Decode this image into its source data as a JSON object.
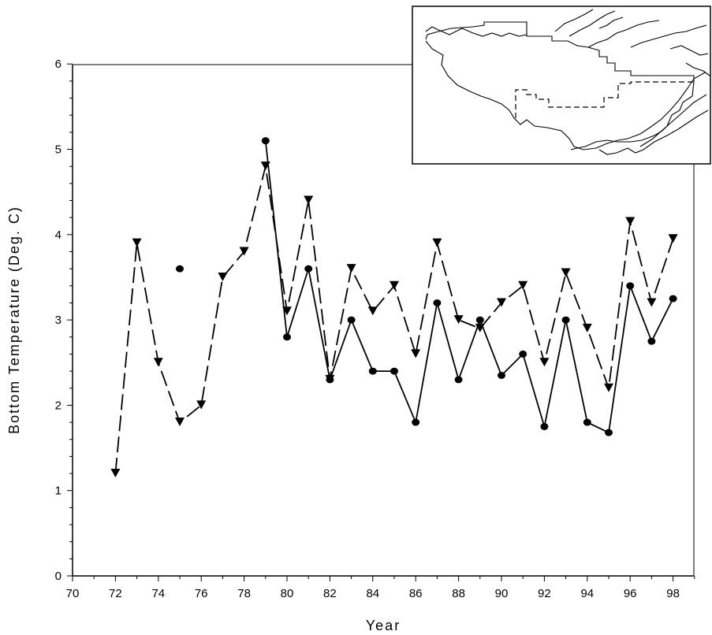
{
  "chart_data": {
    "type": "line",
    "title": "",
    "xlabel": "Year",
    "ylabel": "Bottom Temperature (Deg. C)",
    "xlim": [
      70,
      99
    ],
    "ylim": [
      0,
      6
    ],
    "x_ticks": [
      "70",
      "72",
      "74",
      "76",
      "78",
      "80",
      "82",
      "84",
      "86",
      "88",
      "90",
      "92",
      "94",
      "96",
      "98"
    ],
    "y_ticks": [
      "0",
      "1",
      "2",
      "3",
      "4",
      "5",
      "6"
    ],
    "grid": false,
    "legend": "none",
    "series": [
      {
        "marker": "triangle-down",
        "line_style": "dashed",
        "color": "#000000",
        "points": [
          {
            "x": 72,
            "y": 1.2
          },
          {
            "x": 73,
            "y": 3.9
          },
          {
            "x": 74,
            "y": 2.5
          },
          {
            "x": 75,
            "y": 1.8
          },
          {
            "x": 76,
            "y": 2.0
          },
          {
            "x": 77,
            "y": 3.5
          },
          {
            "x": 78,
            "y": 3.8
          },
          {
            "x": 79,
            "y": 4.8
          },
          {
            "x": 80,
            "y": 3.1
          },
          {
            "x": 81,
            "y": 4.4
          },
          {
            "x": 82,
            "y": 2.3
          },
          {
            "x": 83,
            "y": 3.6
          },
          {
            "x": 84,
            "y": 3.1
          },
          {
            "x": 85,
            "y": 3.4
          },
          {
            "x": 86,
            "y": 2.6
          },
          {
            "x": 87,
            "y": 3.9
          },
          {
            "x": 88,
            "y": 3.0
          },
          {
            "x": 89,
            "y": 2.9
          },
          {
            "x": 90,
            "y": 3.2
          },
          {
            "x": 91,
            "y": 3.4
          },
          {
            "x": 92,
            "y": 2.5
          },
          {
            "x": 93,
            "y": 3.55
          },
          {
            "x": 94,
            "y": 2.9
          },
          {
            "x": 95,
            "y": 2.2
          },
          {
            "x": 96,
            "y": 4.15
          },
          {
            "x": 97,
            "y": 3.2
          },
          {
            "x": 98,
            "y": 3.95
          }
        ]
      },
      {
        "marker": "circle",
        "line_style": "solid",
        "color": "#000000",
        "points": [
          {
            "x": 75,
            "y": 3.6,
            "isolated": true
          },
          {
            "x": 79,
            "y": 5.1
          },
          {
            "x": 80,
            "y": 2.8
          },
          {
            "x": 81,
            "y": 3.6
          },
          {
            "x": 82,
            "y": 2.3
          },
          {
            "x": 83,
            "y": 3.0
          },
          {
            "x": 84,
            "y": 2.4
          },
          {
            "x": 85,
            "y": 2.4
          },
          {
            "x": 86,
            "y": 1.8
          },
          {
            "x": 87,
            "y": 3.2
          },
          {
            "x": 88,
            "y": 2.3
          },
          {
            "x": 89,
            "y": 3.0
          },
          {
            "x": 90,
            "y": 2.35
          },
          {
            "x": 91,
            "y": 2.6
          },
          {
            "x": 92,
            "y": 1.75
          },
          {
            "x": 93,
            "y": 3.0
          },
          {
            "x": 94,
            "y": 1.8
          },
          {
            "x": 95,
            "y": 1.68
          },
          {
            "x": 96,
            "y": 3.4
          },
          {
            "x": 97,
            "y": 2.75
          },
          {
            "x": 98,
            "y": 3.25
          }
        ]
      }
    ],
    "inset": {
      "type": "map",
      "content": "coastline map with survey area outline and dashed sub-region"
    }
  }
}
